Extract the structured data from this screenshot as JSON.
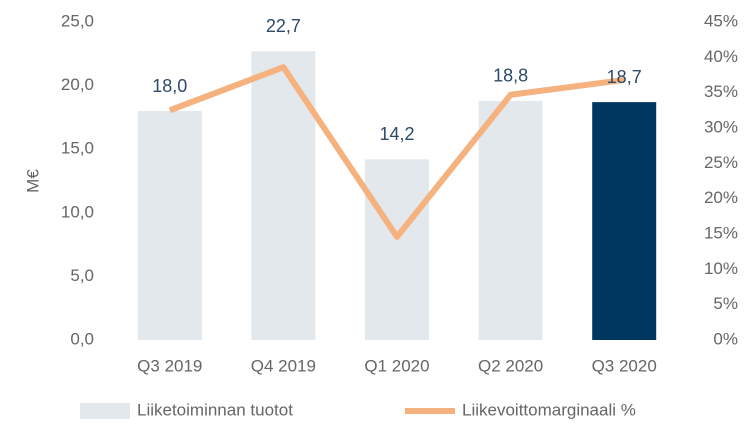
{
  "chart_data": {
    "type": "bar",
    "ylabel": "M€",
    "categories": [
      "Q3 2019",
      "Q4 2019",
      "Q1 2020",
      "Q2 2020",
      "Q3 2020"
    ],
    "series": [
      {
        "name": "Liiketoiminnan tuotot",
        "type": "bar",
        "colors": [
          "#e3e8ed",
          "#e3e8ed",
          "#e3e8ed",
          "#e3e8ed",
          "#003761"
        ],
        "values": [
          18.0,
          22.7,
          14.2,
          18.8,
          18.7
        ],
        "value_labels": [
          "18,0",
          "22,7",
          "14,2",
          "18,8",
          "18,7"
        ]
      },
      {
        "name": "Liikevoittomarginaali %",
        "type": "line",
        "axis": "y2",
        "color": "#f5b27f",
        "values": [
          32.5,
          38.6,
          14.6,
          34.7,
          36.8
        ]
      }
    ],
    "ylim": [
      0,
      25
    ],
    "yticks": [
      {
        "value": 0,
        "label": "0,0"
      },
      {
        "value": 5,
        "label": "5,0"
      },
      {
        "value": 10,
        "label": "10,0"
      },
      {
        "value": 15,
        "label": "15,0"
      },
      {
        "value": 20,
        "label": "20,0"
      },
      {
        "value": 25,
        "label": "25,0"
      }
    ],
    "y2lim": [
      0,
      45
    ],
    "y2ticks": [
      {
        "value": 0,
        "label": "0%"
      },
      {
        "value": 5,
        "label": "5%"
      },
      {
        "value": 10,
        "label": "10%"
      },
      {
        "value": 15,
        "label": "15%"
      },
      {
        "value": 20,
        "label": "20%"
      },
      {
        "value": 25,
        "label": "25%"
      },
      {
        "value": 30,
        "label": "30%"
      },
      {
        "value": 35,
        "label": "35%"
      },
      {
        "value": 40,
        "label": "40%"
      },
      {
        "value": 45,
        "label": "45%"
      }
    ],
    "grid": false
  }
}
